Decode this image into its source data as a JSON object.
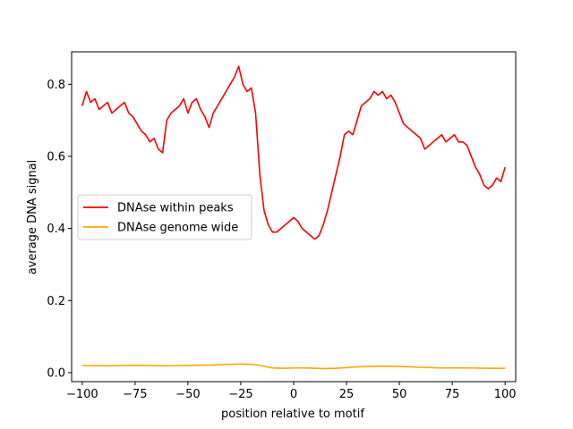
{
  "chart_data": {
    "type": "line",
    "title": "",
    "xlabel": "position relative to motif",
    "ylabel": "average DNA signal",
    "xlim": [
      -105,
      105
    ],
    "ylim": [
      -0.025,
      0.89
    ],
    "xticks": [
      -100,
      -75,
      -50,
      -25,
      0,
      25,
      50,
      75,
      100
    ],
    "xtick_labels": [
      "−100",
      "−75",
      "−50",
      "−25",
      "0",
      "25",
      "50",
      "75",
      "100"
    ],
    "yticks": [
      0.0,
      0.2,
      0.4,
      0.6,
      0.8
    ],
    "ytick_labels": [
      "0.0",
      "0.2",
      "0.4",
      "0.6",
      "0.8"
    ],
    "grid": false,
    "legend_position": "center-left",
    "series": [
      {
        "name": "DNAse within peaks",
        "color": "#ff0000",
        "x": [
          -100,
          -98,
          -96,
          -94,
          -92,
          -90,
          -88,
          -86,
          -84,
          -82,
          -80,
          -78,
          -76,
          -74,
          -72,
          -70,
          -68,
          -66,
          -64,
          -62,
          -60,
          -58,
          -56,
          -54,
          -52,
          -50,
          -48,
          -46,
          -44,
          -42,
          -40,
          -38,
          -36,
          -34,
          -32,
          -30,
          -28,
          -26,
          -24,
          -22,
          -20,
          -18,
          -16,
          -14,
          -12,
          -10,
          -8,
          -6,
          -4,
          -2,
          0,
          2,
          4,
          6,
          8,
          10,
          12,
          14,
          16,
          18,
          20,
          22,
          24,
          26,
          28,
          30,
          32,
          34,
          36,
          38,
          40,
          42,
          44,
          46,
          48,
          50,
          52,
          54,
          56,
          58,
          60,
          62,
          64,
          66,
          68,
          70,
          72,
          74,
          76,
          78,
          80,
          82,
          84,
          86,
          88,
          90,
          92,
          94,
          96,
          98,
          100
        ],
        "y": [
          0.74,
          0.78,
          0.75,
          0.76,
          0.73,
          0.74,
          0.75,
          0.72,
          0.73,
          0.74,
          0.75,
          0.72,
          0.71,
          0.69,
          0.67,
          0.66,
          0.64,
          0.65,
          0.62,
          0.61,
          0.7,
          0.72,
          0.73,
          0.74,
          0.76,
          0.72,
          0.75,
          0.76,
          0.73,
          0.71,
          0.68,
          0.72,
          0.74,
          0.76,
          0.78,
          0.8,
          0.82,
          0.85,
          0.8,
          0.78,
          0.79,
          0.72,
          0.55,
          0.45,
          0.41,
          0.39,
          0.39,
          0.4,
          0.41,
          0.42,
          0.43,
          0.42,
          0.4,
          0.39,
          0.38,
          0.37,
          0.38,
          0.41,
          0.45,
          0.5,
          0.55,
          0.6,
          0.66,
          0.67,
          0.66,
          0.7,
          0.74,
          0.75,
          0.76,
          0.78,
          0.77,
          0.78,
          0.76,
          0.77,
          0.75,
          0.72,
          0.69,
          0.68,
          0.67,
          0.66,
          0.65,
          0.62,
          0.63,
          0.64,
          0.65,
          0.66,
          0.64,
          0.65,
          0.66,
          0.64,
          0.64,
          0.63,
          0.6,
          0.57,
          0.55,
          0.52,
          0.51,
          0.52,
          0.54,
          0.53,
          0.57
        ]
      },
      {
        "name": "DNAse genome wide",
        "color": "#ffa500",
        "x": [
          -100,
          -90,
          -80,
          -70,
          -60,
          -50,
          -40,
          -30,
          -25,
          -20,
          -15,
          -10,
          -5,
          0,
          5,
          10,
          15,
          20,
          25,
          30,
          35,
          40,
          45,
          50,
          55,
          60,
          65,
          70,
          75,
          80,
          85,
          90,
          95,
          100
        ],
        "y": [
          0.02,
          0.019,
          0.02,
          0.02,
          0.019,
          0.02,
          0.021,
          0.023,
          0.024,
          0.023,
          0.019,
          0.013,
          0.012,
          0.013,
          0.013,
          0.012,
          0.011,
          0.012,
          0.014,
          0.016,
          0.017,
          0.018,
          0.018,
          0.017,
          0.016,
          0.015,
          0.014,
          0.013,
          0.013,
          0.013,
          0.013,
          0.012,
          0.012,
          0.012
        ]
      }
    ]
  }
}
